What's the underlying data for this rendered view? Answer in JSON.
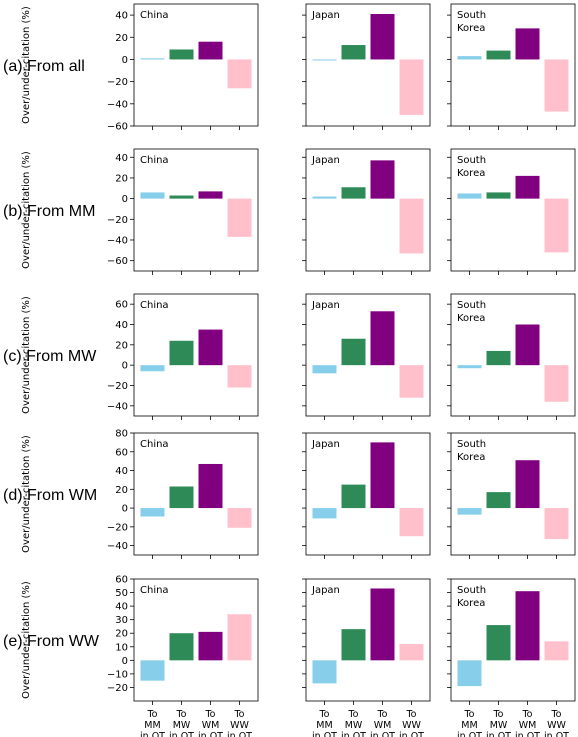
{
  "chart_data": {
    "type": "bar",
    "ylabel": "Over/under-citation (%)",
    "categories": [
      "To MM in OT",
      "To MW in OT",
      "To WM in OT",
      "To WW in OT"
    ],
    "category_lines": [
      [
        "To",
        "MM",
        "in OT"
      ],
      [
        "To",
        "MW",
        "in OT"
      ],
      [
        "To",
        "WM",
        "in OT"
      ],
      [
        "To",
        "WW",
        "in OT"
      ]
    ],
    "colors": [
      "#87ceeb",
      "#2e8b57",
      "#800080",
      "#ffc0cb"
    ],
    "countries": [
      {
        "name": "China",
        "label_lines": [
          "China"
        ]
      },
      {
        "name": "Japan",
        "label_lines": [
          "Japan"
        ]
      },
      {
        "name": "South Korea",
        "label_lines": [
          "South",
          "Korea"
        ]
      }
    ],
    "rows": [
      {
        "label": "(a) From all",
        "ylim": [
          -60,
          50
        ],
        "ticks": [
          -60,
          -40,
          -20,
          0,
          20,
          40
        ],
        "values": [
          [
            1,
            9,
            16,
            -26
          ],
          [
            0,
            13,
            41,
            -50
          ],
          [
            3,
            8,
            28,
            -47
          ]
        ]
      },
      {
        "label": "(b) From MM",
        "ylim": [
          -70,
          48
        ],
        "ticks": [
          -60,
          -40,
          -20,
          0,
          20,
          40
        ],
        "values": [
          [
            6,
            3,
            7,
            -37
          ],
          [
            2,
            11,
            37,
            -53
          ],
          [
            5,
            6,
            22,
            -52
          ]
        ]
      },
      {
        "label": "(c) From MW",
        "ylim": [
          -50,
          70
        ],
        "ticks": [
          -40,
          -20,
          0,
          20,
          40,
          60
        ],
        "values": [
          [
            -6,
            24,
            35,
            -22
          ],
          [
            -8,
            26,
            53,
            -32
          ],
          [
            -3,
            14,
            40,
            -36
          ]
        ]
      },
      {
        "label": "(d) From WM",
        "ylim": [
          -50,
          80
        ],
        "ticks": [
          -40,
          -20,
          0,
          20,
          40,
          60,
          80
        ],
        "values": [
          [
            -9,
            23,
            47,
            -21
          ],
          [
            -11,
            25,
            70,
            -30
          ],
          [
            -7,
            17,
            51,
            -33
          ]
        ]
      },
      {
        "label": "(e) From WW",
        "ylim": [
          -30,
          60
        ],
        "ticks": [
          -20,
          -10,
          0,
          10,
          20,
          30,
          40,
          50,
          60
        ],
        "values": [
          [
            -15,
            20,
            21,
            34
          ],
          [
            -17,
            23,
            53,
            12
          ],
          [
            -19,
            26,
            51,
            14
          ]
        ]
      }
    ]
  }
}
